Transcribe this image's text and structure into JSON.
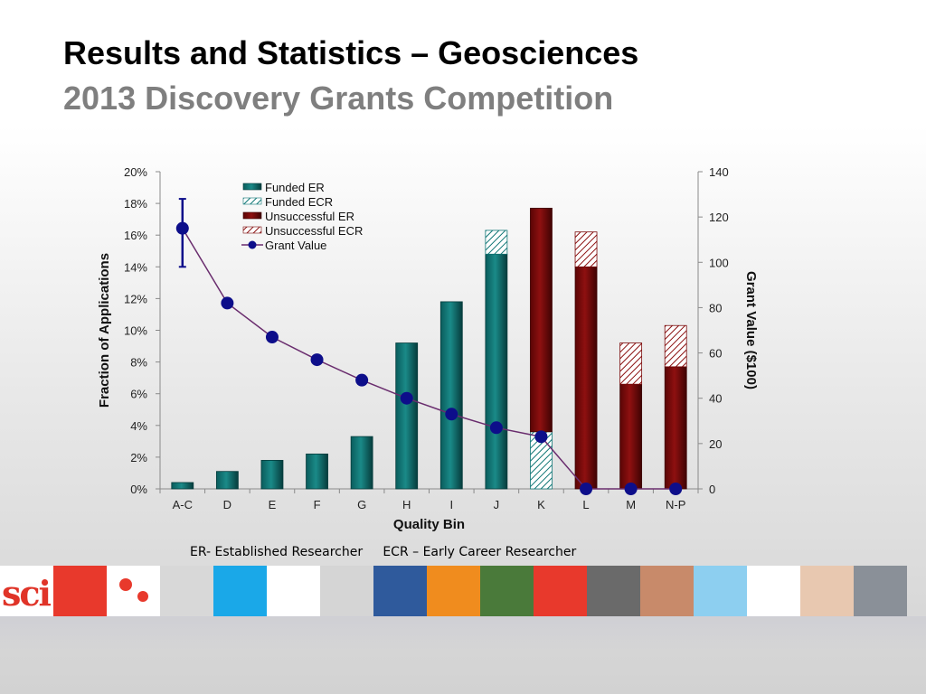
{
  "slide": {
    "title": "Results and Statistics – Geosciences",
    "subtitle": "2013 Discovery Grants Competition",
    "footnote": "ER- Established Researcher     ECR – Early Career Researcher",
    "logo_text": "sci"
  },
  "colors": {
    "funded": "#0f7675",
    "funded_dark": "#063c3c",
    "unsuccessful": "#7a0a0a",
    "unsuccessful_dark": "#3f0303",
    "grant_line": "#6a2d6e",
    "grant_marker": "#0d0e8a"
  },
  "chart_data": {
    "type": "bar",
    "xlabel": "Quality Bin",
    "ylabel": "Fraction of Applications",
    "y2label": "Grant Value ($100)",
    "categories": [
      "A-C",
      "D",
      "E",
      "F",
      "G",
      "H",
      "I",
      "J",
      "K",
      "L",
      "M",
      "N-P"
    ],
    "ylim": [
      0,
      20
    ],
    "yticks": [
      "0%",
      "2%",
      "4%",
      "6%",
      "8%",
      "10%",
      "12%",
      "14%",
      "16%",
      "18%",
      "20%"
    ],
    "y2lim": [
      0,
      140
    ],
    "y2ticks": [
      "0",
      "20",
      "40",
      "60",
      "80",
      "100",
      "120",
      "140"
    ],
    "legend_position": "top-left",
    "series": [
      {
        "name": "Funded ER",
        "kind": "bar",
        "values": [
          0.4,
          1.1,
          1.8,
          2.2,
          3.3,
          9.2,
          11.8,
          14.8,
          0,
          0,
          0,
          0
        ]
      },
      {
        "name": "Funded ECR",
        "kind": "bar",
        "values": [
          0,
          0,
          0,
          0,
          0,
          0,
          0,
          1.5,
          3.6,
          0,
          0,
          0
        ]
      },
      {
        "name": "Unsuccessful ER",
        "kind": "bar",
        "values": [
          0,
          0,
          0,
          0,
          0,
          0,
          0,
          0,
          14.1,
          14.0,
          6.6,
          7.7
        ]
      },
      {
        "name": "Unsuccessful ECR",
        "kind": "bar",
        "values": [
          0,
          0,
          0,
          0,
          0,
          0,
          0,
          0,
          0,
          2.2,
          2.6,
          2.6
        ]
      },
      {
        "name": "Grant Value",
        "kind": "line",
        "axis": "right",
        "values": [
          115,
          82,
          67,
          57,
          48,
          40,
          33,
          27,
          23,
          0,
          0,
          0
        ]
      }
    ],
    "error_bar": {
      "category": "A-C",
      "low": 98,
      "high": 128
    }
  },
  "strip_tiles": [
    "#ffffff",
    "#e8392c",
    "#ffffff",
    "#d8d8d8",
    "#1aa8e8",
    "#ffffff",
    "#d5d5d5",
    "#2f5a9c",
    "#f08c1e",
    "#4a7a3a",
    "#e8392c",
    "#6a6a6a",
    "#c88a6a",
    "#8dcff0",
    "#ffffff",
    "#e8c8b0",
    "#8a9098"
  ]
}
